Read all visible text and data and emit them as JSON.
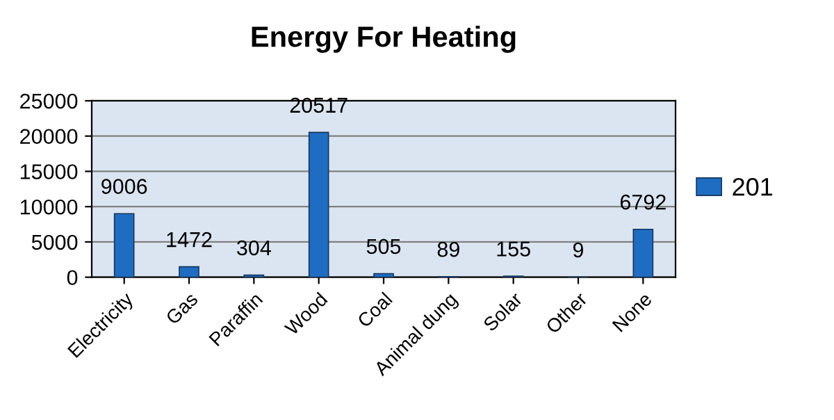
{
  "chart_data": {
    "type": "bar",
    "title": "Energy For Heating",
    "categories": [
      "Electricity",
      "Gas",
      "Paraffin",
      "Wood",
      "Coal",
      "Animal dung",
      "Solar",
      "Other",
      "None"
    ],
    "series": [
      {
        "name": "201",
        "color": "#1f6dc2",
        "values": [
          9006,
          1472,
          304,
          20517,
          505,
          89,
          155,
          9,
          6792
        ]
      }
    ],
    "ylim": [
      0,
      25000
    ],
    "yticks": [
      0,
      5000,
      10000,
      15000,
      20000,
      25000
    ],
    "grid": "y",
    "legend": "right",
    "data_labels": true
  }
}
